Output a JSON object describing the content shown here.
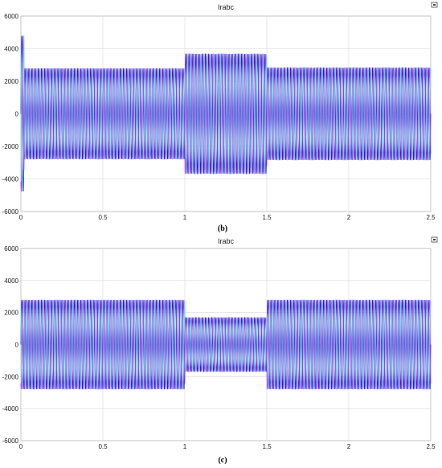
{
  "chart_data": [
    {
      "type": "line",
      "title": "Irabc",
      "caption": "(b)",
      "icon": "dock-icon",
      "xlim": [
        0,
        2.5
      ],
      "ylim": [
        -6000,
        6000
      ],
      "x_ticks": [
        "0",
        "0.5",
        "1",
        "1.5",
        "2",
        "2.5"
      ],
      "y_ticks": [
        "6000",
        "4000",
        "2000",
        "0",
        "-2000",
        "-4000",
        "-6000"
      ],
      "grid": true,
      "frequency_hz": 50,
      "segments": [
        {
          "t": [
            0.0,
            0.02
          ],
          "amp": 4800
        },
        {
          "t": [
            0.02,
            1.0
          ],
          "amp": 2800
        },
        {
          "t": [
            1.0,
            1.5
          ],
          "amp": 3700
        },
        {
          "t": [
            1.5,
            2.5
          ],
          "amp": 2850
        }
      ],
      "series": [
        {
          "phase": "a",
          "color": "#1f1fcf",
          "phase_deg": 0
        },
        {
          "phase": "b",
          "color": "#e020e0",
          "phase_deg": -120
        },
        {
          "phase": "c",
          "color": "#40e0e8",
          "phase_deg": 120
        }
      ]
    },
    {
      "type": "line",
      "title": "Irabc",
      "caption": "(c)",
      "icon": "dock-icon",
      "xlim": [
        0,
        2.5
      ],
      "ylim": [
        -6000,
        6000
      ],
      "x_ticks": [
        "0",
        "0.5",
        "1",
        "1.5",
        "2",
        "2.5"
      ],
      "y_ticks": [
        "6000",
        "4000",
        "2000",
        "0",
        "-2000",
        "-4000",
        "-6000"
      ],
      "grid": true,
      "frequency_hz": 50,
      "segments": [
        {
          "t": [
            0.0,
            1.0
          ],
          "amp": 2800
        },
        {
          "t": [
            1.0,
            1.5
          ],
          "amp": 1700
        },
        {
          "t": [
            1.5,
            2.5
          ],
          "amp": 2800
        }
      ],
      "series": [
        {
          "phase": "a",
          "color": "#1f1fcf",
          "phase_deg": 0
        },
        {
          "phase": "b",
          "color": "#e020e0",
          "phase_deg": -120
        },
        {
          "phase": "c",
          "color": "#40e0e8",
          "phase_deg": 120
        }
      ]
    }
  ]
}
